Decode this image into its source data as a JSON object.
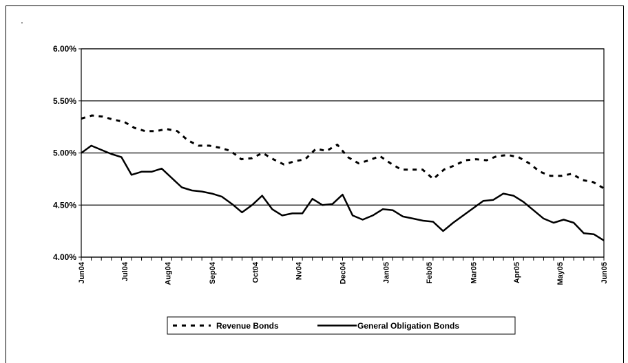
{
  "chart_data": {
    "type": "line",
    "title": "",
    "xlabel": "",
    "ylabel": "",
    "ylim": [
      0.04,
      0.06
    ],
    "y_ticks": [
      {
        "value": 0.06,
        "label": "6.00%"
      },
      {
        "value": 0.055,
        "label": "5.50%"
      },
      {
        "value": 0.05,
        "label": "5.00%"
      },
      {
        "value": 0.045,
        "label": "4.50%"
      },
      {
        "value": 0.04,
        "label": "4.00%"
      }
    ],
    "x_ticks": [
      {
        "index": 0,
        "label": "Jun04"
      },
      {
        "index": 4.3,
        "label": "Jul04"
      },
      {
        "index": 8.6,
        "label": "Aug04"
      },
      {
        "index": 13,
        "label": "Sep04"
      },
      {
        "index": 17.3,
        "label": "Oct04"
      },
      {
        "index": 21.6,
        "label": "Nv04"
      },
      {
        "index": 26,
        "label": "Dec04"
      },
      {
        "index": 30.3,
        "label": "Jan05"
      },
      {
        "index": 34.6,
        "label": "Feb05"
      },
      {
        "index": 39,
        "label": "Mar05"
      },
      {
        "index": 43.3,
        "label": "Apr05"
      },
      {
        "index": 47.6,
        "label": "May05"
      },
      {
        "index": 52,
        "label": "Jun05"
      }
    ],
    "grid": true,
    "legend_position": "bottom",
    "series": [
      {
        "name": "Revenue Bonds",
        "style": "dashed",
        "color": "#000000",
        "values": [
          0.0533,
          0.0536,
          0.0535,
          0.0532,
          0.053,
          0.0524,
          0.0521,
          0.0521,
          0.0523,
          0.0521,
          0.0512,
          0.0507,
          0.0507,
          0.0505,
          0.0502,
          0.0494,
          0.0495,
          0.05,
          0.0494,
          0.0489,
          0.0492,
          0.0494,
          0.0504,
          0.0502,
          0.0508,
          0.0496,
          0.049,
          0.0493,
          0.0497,
          0.049,
          0.0484,
          0.0484,
          0.0484,
          0.0475,
          0.0484,
          0.0488,
          0.0493,
          0.0494,
          0.0493,
          0.0497,
          0.0498,
          0.0496,
          0.049,
          0.0482,
          0.0478,
          0.0478,
          0.048,
          0.0474,
          0.0472,
          0.0466
        ]
      },
      {
        "name": "General Obligation Bonds",
        "style": "solid",
        "color": "#000000",
        "values": [
          0.05,
          0.0507,
          0.0503,
          0.0499,
          0.0496,
          0.0479,
          0.0482,
          0.0482,
          0.0485,
          0.0476,
          0.0467,
          0.0464,
          0.0463,
          0.0461,
          0.0458,
          0.0451,
          0.0443,
          0.045,
          0.0459,
          0.0446,
          0.044,
          0.0442,
          0.0442,
          0.0456,
          0.045,
          0.0451,
          0.046,
          0.044,
          0.0436,
          0.044,
          0.0446,
          0.0445,
          0.0439,
          0.0437,
          0.0435,
          0.0434,
          0.0425,
          0.0433,
          0.044,
          0.0447,
          0.0454,
          0.0455,
          0.0461,
          0.0459,
          0.0453,
          0.0445,
          0.0437,
          0.0433,
          0.0436,
          0.0433,
          0.0423,
          0.0422,
          0.0416
        ]
      }
    ]
  }
}
